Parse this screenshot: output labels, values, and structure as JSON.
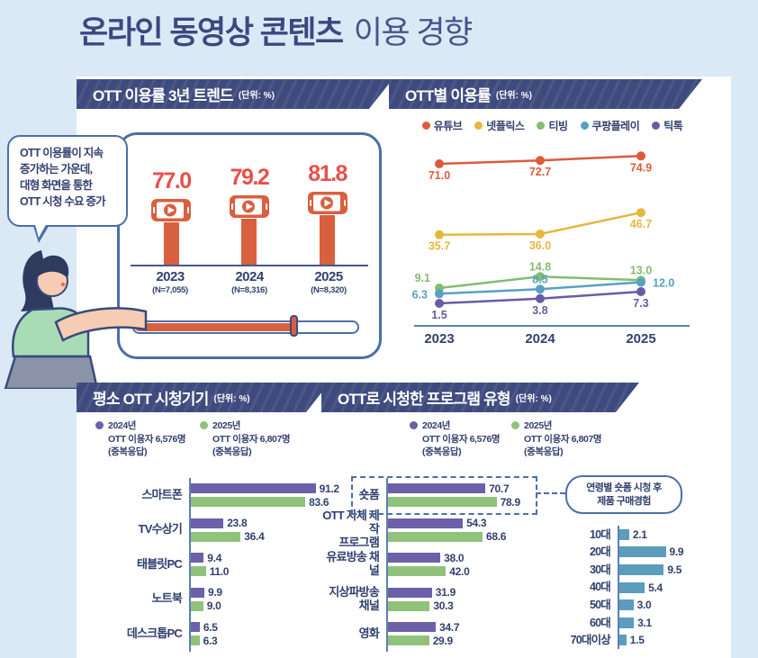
{
  "page": {
    "title_bold": "온라인 동영상 콘텐츠",
    "title_light": "이용 경향"
  },
  "speech_bubble": {
    "lines": [
      "OTT 이용률이 지속",
      "증가하는 가운데,",
      "대형 화면을 통한",
      "OTT 시청 수요 증가"
    ]
  },
  "panels": {
    "trend": {
      "title": "OTT 이용률 3년 트렌드",
      "unit": "(단위: %)"
    },
    "by_service": {
      "title": "OTT별 이용률",
      "unit": "(단위: %)"
    },
    "devices": {
      "title": "평소 OTT 시청기기",
      "unit": "(단위: %)"
    },
    "programs": {
      "title": "OTT로 시청한 프로그램 유형",
      "unit": "(단위: %)"
    }
  },
  "legend_2024_2025": {
    "y2024": {
      "year": "2024년",
      "desc": "OTT 이용자 6,576명",
      "note": "(중복응답)",
      "color": "#6c60a8"
    },
    "y2025": {
      "year": "2025년",
      "desc": "OTT 이용자 6,807명",
      "note": "(중복응답)",
      "color": "#90c27c"
    }
  },
  "callout": {
    "line1": "연령별 숏폼 시청 후",
    "line2": "제품 구매경험"
  },
  "colors": {
    "background": "#dbe9f6",
    "banner_navy": "#3f4b7e",
    "text_navy": "#33406f",
    "red_orange": "#d9603f",
    "red_value": "#e85048",
    "purple_2024": "#6c60a8",
    "green_2025": "#90c27c",
    "teal_age": "#5c9dbd",
    "axis_blue": "#5b7fb5",
    "frame_blue": "#4a6fa8"
  },
  "chart_data": [
    {
      "id": "ott-usage-trend",
      "type": "bar",
      "title": "OTT 이용률 3년 트렌드",
      "unit": "%",
      "categories": [
        "2023",
        "2024",
        "2025"
      ],
      "sample_labels": [
        "(N=7,055)",
        "(N=8,316)",
        "(N=8,320)"
      ],
      "values": [
        77.0,
        79.2,
        81.8
      ],
      "bar_color": "#d9603f",
      "value_color": "#e85048"
    },
    {
      "id": "ott-usage-by-service",
      "type": "line",
      "title": "OTT별 이용률",
      "unit": "%",
      "x": [
        "2023",
        "2024",
        "2025"
      ],
      "ylim": [
        0,
        80
      ],
      "grid": false,
      "legend_position": "top",
      "series": [
        {
          "name": "유튜브",
          "color": "#dd5b3c",
          "values": [
            71.0,
            72.7,
            74.9
          ],
          "label_positions": [
            "below",
            "below",
            "below"
          ]
        },
        {
          "name": "넷플릭스",
          "color": "#e6b73c",
          "values": [
            35.7,
            36.0,
            46.7
          ],
          "label_positions": [
            "below",
            "below",
            "below"
          ]
        },
        {
          "name": "티빙",
          "color": "#82bd72",
          "values": [
            9.1,
            14.8,
            13.0
          ],
          "label_positions": [
            "above-left",
            "above",
            "above"
          ]
        },
        {
          "name": "쿠팡플레이",
          "color": "#58a0c4",
          "values": [
            6.3,
            8.5,
            12.0
          ],
          "label_positions": [
            "left",
            "above",
            "right"
          ]
        },
        {
          "name": "틱톡",
          "color": "#6a5ba5",
          "values": [
            1.5,
            3.8,
            7.3
          ],
          "label_positions": [
            "below",
            "below",
            "below"
          ]
        }
      ]
    },
    {
      "id": "ott-devices",
      "type": "bar",
      "orientation": "horizontal",
      "title": "평소 OTT 시청기기",
      "unit": "%",
      "categories": [
        "스마트폰",
        "TV수상기",
        "태블릿PC",
        "노트북",
        "데스크톱PC"
      ],
      "series": [
        {
          "name": "2024년",
          "color": "#6c60a8",
          "values": [
            91.2,
            23.8,
            9.4,
            9.9,
            6.5
          ]
        },
        {
          "name": "2025년",
          "color": "#90c27c",
          "values": [
            83.6,
            36.4,
            11.0,
            9.0,
            6.3
          ]
        }
      ]
    },
    {
      "id": "ott-program-types",
      "type": "bar",
      "orientation": "horizontal",
      "title": "OTT로 시청한 프로그램 유형",
      "unit": "%",
      "categories": [
        "숏폼",
        "OTT 자체 제작|프로그램",
        "유료방송 채널",
        "지상파방송|채널",
        "영화"
      ],
      "highlight_category": "숏폼",
      "series": [
        {
          "name": "2024년",
          "color": "#6c60a8",
          "values": [
            70.7,
            54.3,
            38.0,
            31.9,
            34.7
          ]
        },
        {
          "name": "2025년",
          "color": "#90c27c",
          "values": [
            78.9,
            68.6,
            42.0,
            30.3,
            29.9
          ]
        }
      ]
    },
    {
      "id": "shortform-purchase-by-age",
      "type": "bar",
      "orientation": "horizontal",
      "title": "연령별 숏폼 시청 후 제품 구매경험",
      "unit": "%",
      "categories": [
        "10대",
        "20대",
        "30대",
        "40대",
        "50대",
        "60대",
        "70대이상"
      ],
      "values": [
        2.1,
        9.9,
        9.5,
        5.4,
        3.0,
        3.1,
        1.5
      ],
      "color": "#5c9dbd"
    }
  ]
}
